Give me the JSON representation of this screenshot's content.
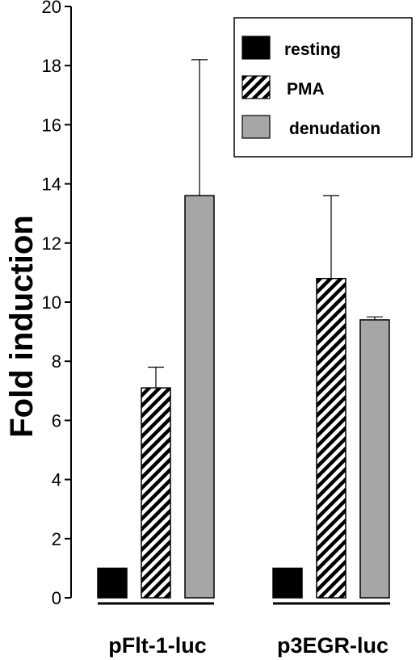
{
  "chart_data": {
    "type": "bar",
    "title": "",
    "xlabel": "",
    "ylabel": "Fold induction",
    "ylim": [
      0,
      20
    ],
    "yticks": [
      0,
      2,
      4,
      6,
      8,
      10,
      12,
      14,
      16,
      18,
      20
    ],
    "categories": [
      "pFlt-1-luc",
      "p3EGR-luc"
    ],
    "series": [
      {
        "name": "resting",
        "values": [
          1.0,
          1.0
        ],
        "errors": [
          0,
          0
        ],
        "fill": "#000000",
        "pattern": "solid"
      },
      {
        "name": "PMA",
        "values": [
          7.1,
          10.8
        ],
        "errors": [
          0.7,
          2.8
        ],
        "fill": "#000000",
        "pattern": "diagonal-stripes"
      },
      {
        "name": "denudation",
        "values": [
          13.6,
          9.4
        ],
        "errors": [
          4.6,
          0.1
        ],
        "fill": "#a6a6a6",
        "pattern": "solid"
      }
    ],
    "legend": "top-right",
    "grid": false
  }
}
